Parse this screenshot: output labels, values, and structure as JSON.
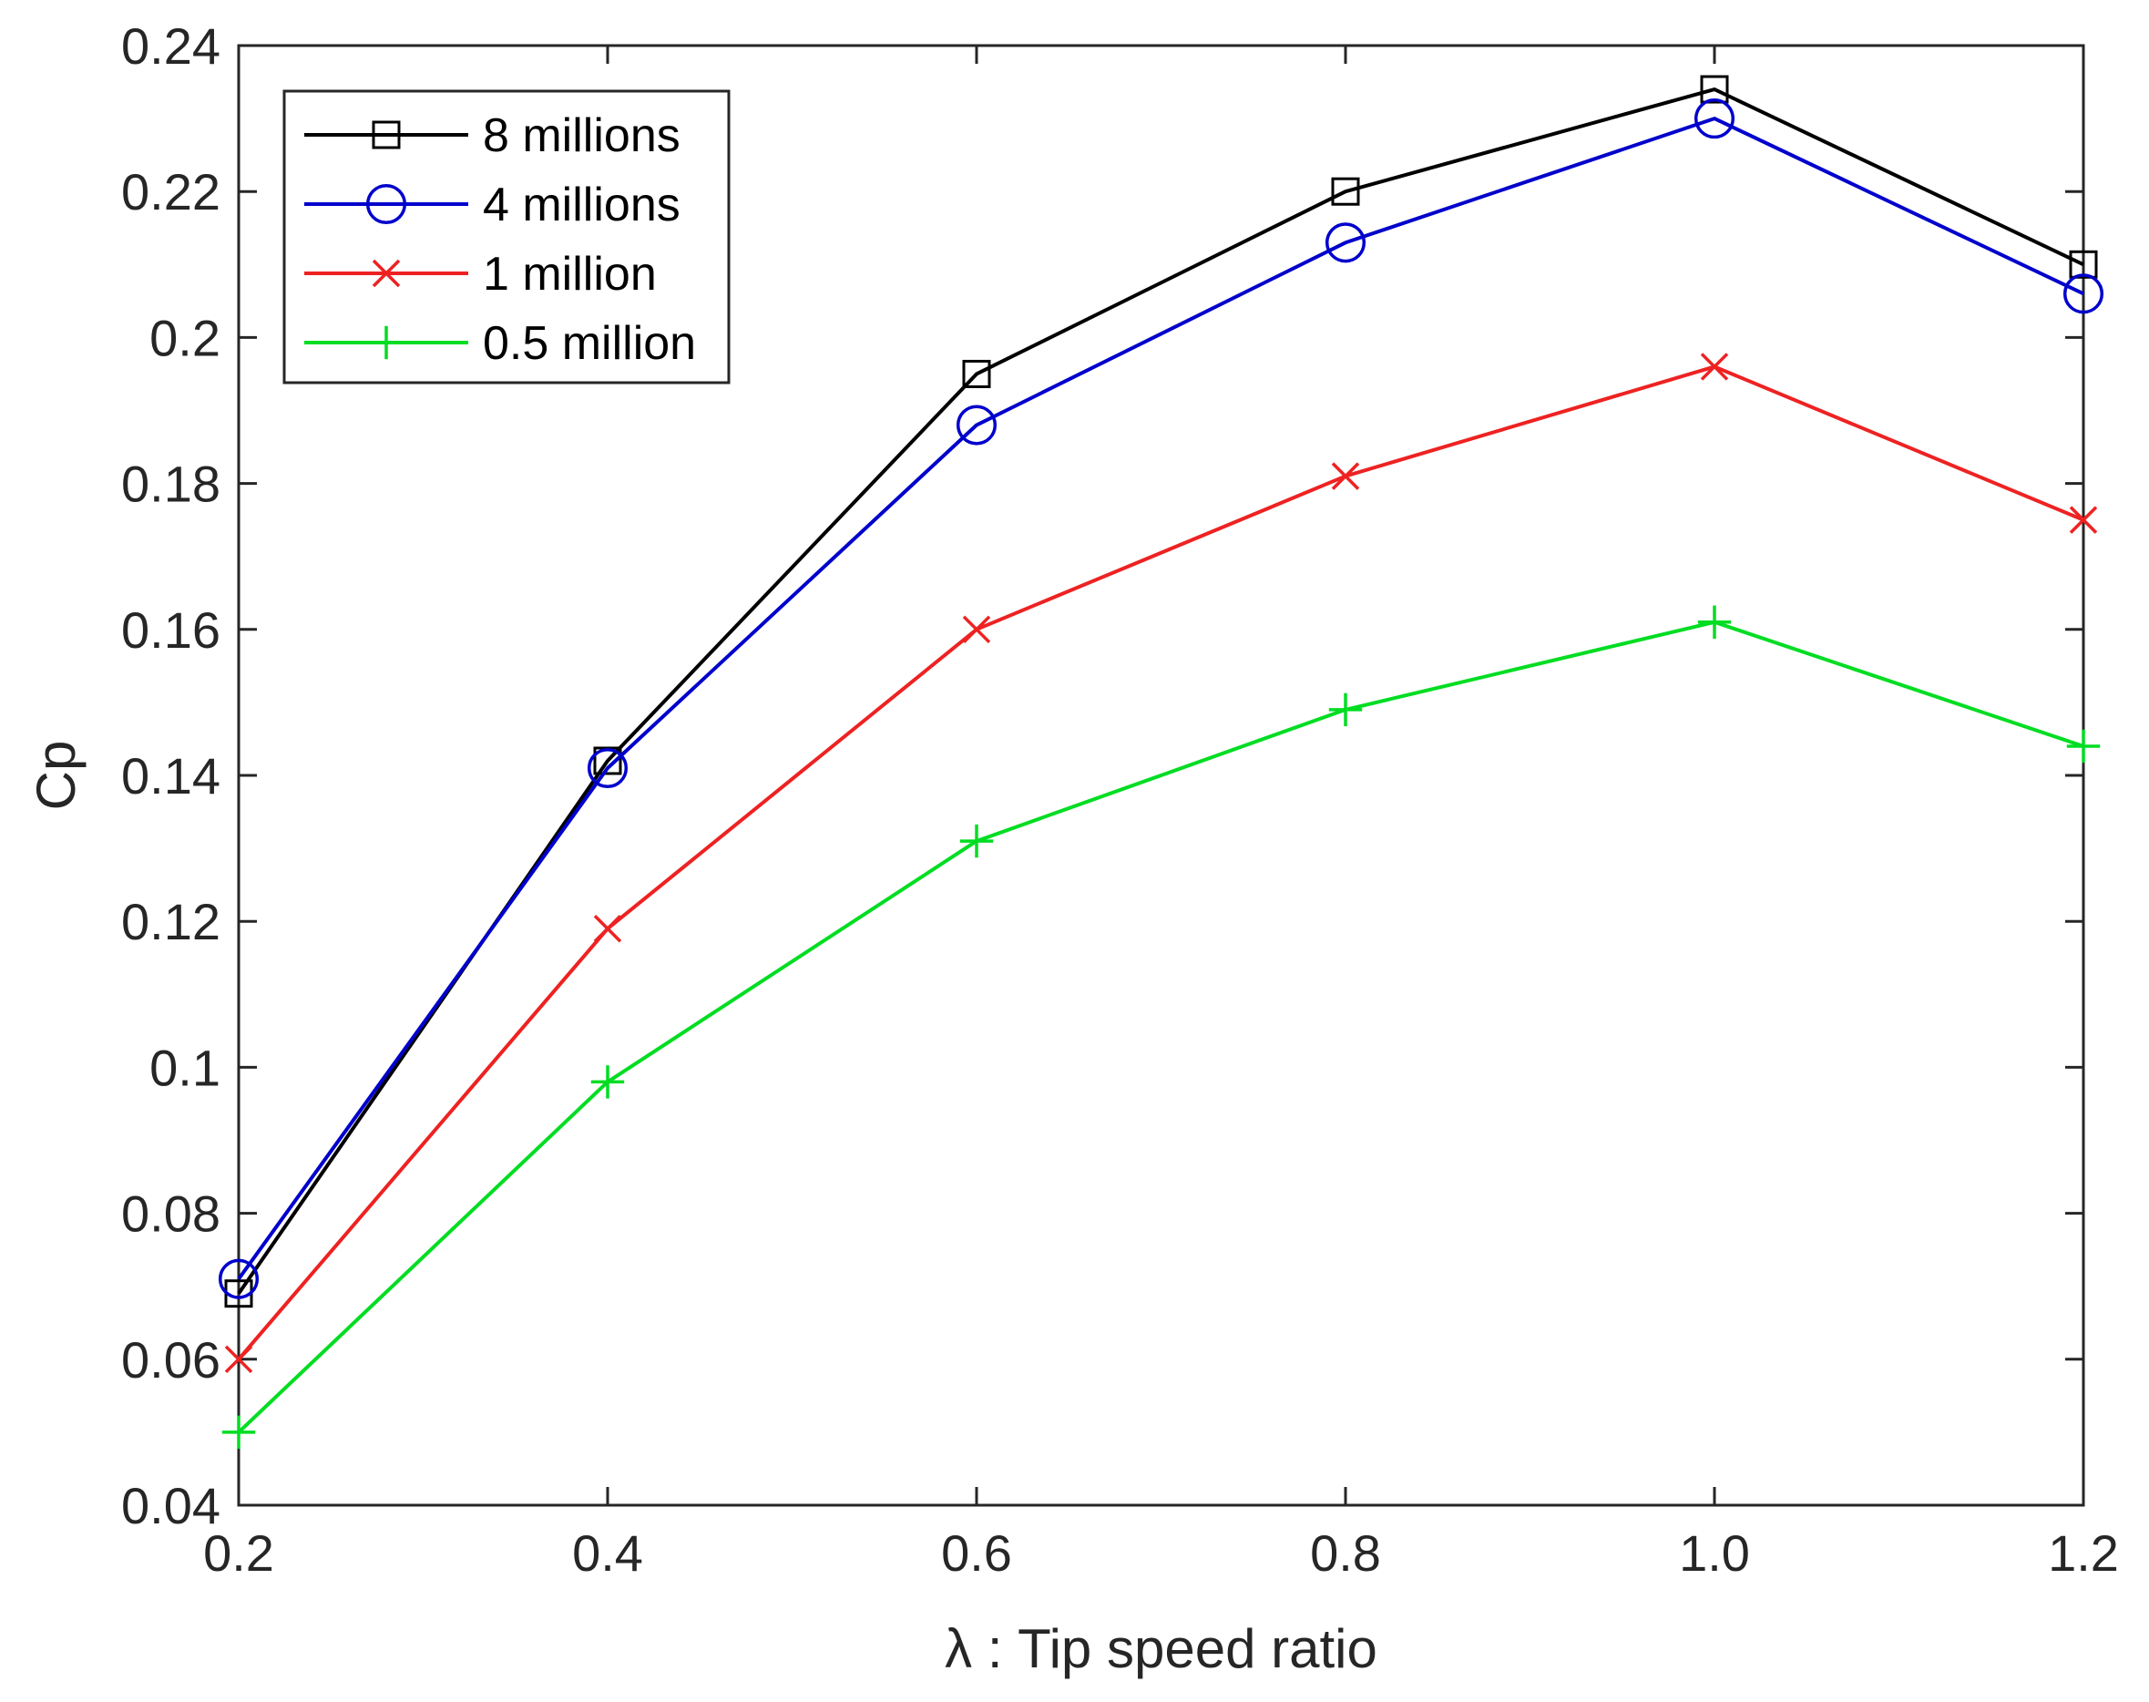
{
  "chart_data": {
    "type": "line",
    "title": "",
    "xlabel": "λ : Tip speed ratio",
    "ylabel": "Cp",
    "x": [
      0.2,
      0.4,
      0.6,
      0.8,
      1.0,
      1.2
    ],
    "x_tick_labels": [
      "0.2",
      "0.4",
      "0.6",
      "0.8",
      "1.0",
      "1.2"
    ],
    "y_tick_values": [
      0.04,
      0.06,
      0.08,
      0.1,
      0.12,
      0.14,
      0.16,
      0.18,
      0.2,
      0.22,
      0.24
    ],
    "y_tick_labels": [
      "0.04",
      "0.06",
      "0.08",
      "0.1",
      "0.12",
      "0.14",
      "0.16",
      "0.18",
      "0.2",
      "0.22",
      "0.24"
    ],
    "xlim": [
      0.2,
      1.2
    ],
    "ylim": [
      0.04,
      0.24
    ],
    "grid": false,
    "legend_position": "top-left",
    "series": [
      {
        "name": "8 millions",
        "color": "#000000",
        "marker": "square",
        "values": [
          0.069,
          0.142,
          0.195,
          0.22,
          0.234,
          0.21
        ]
      },
      {
        "name": "4 millions",
        "color": "#0000cc",
        "marker": "circle",
        "values": [
          0.071,
          0.141,
          0.188,
          0.213,
          0.23,
          0.206
        ]
      },
      {
        "name": "1 million",
        "color": "#ee2222",
        "marker": "x",
        "values": [
          0.06,
          0.119,
          0.16,
          0.181,
          0.196,
          0.175
        ]
      },
      {
        "name": "0.5 million",
        "color": "#00dd22",
        "marker": "plus",
        "values": [
          0.05,
          0.098,
          0.131,
          0.149,
          0.161,
          0.144
        ]
      }
    ]
  }
}
